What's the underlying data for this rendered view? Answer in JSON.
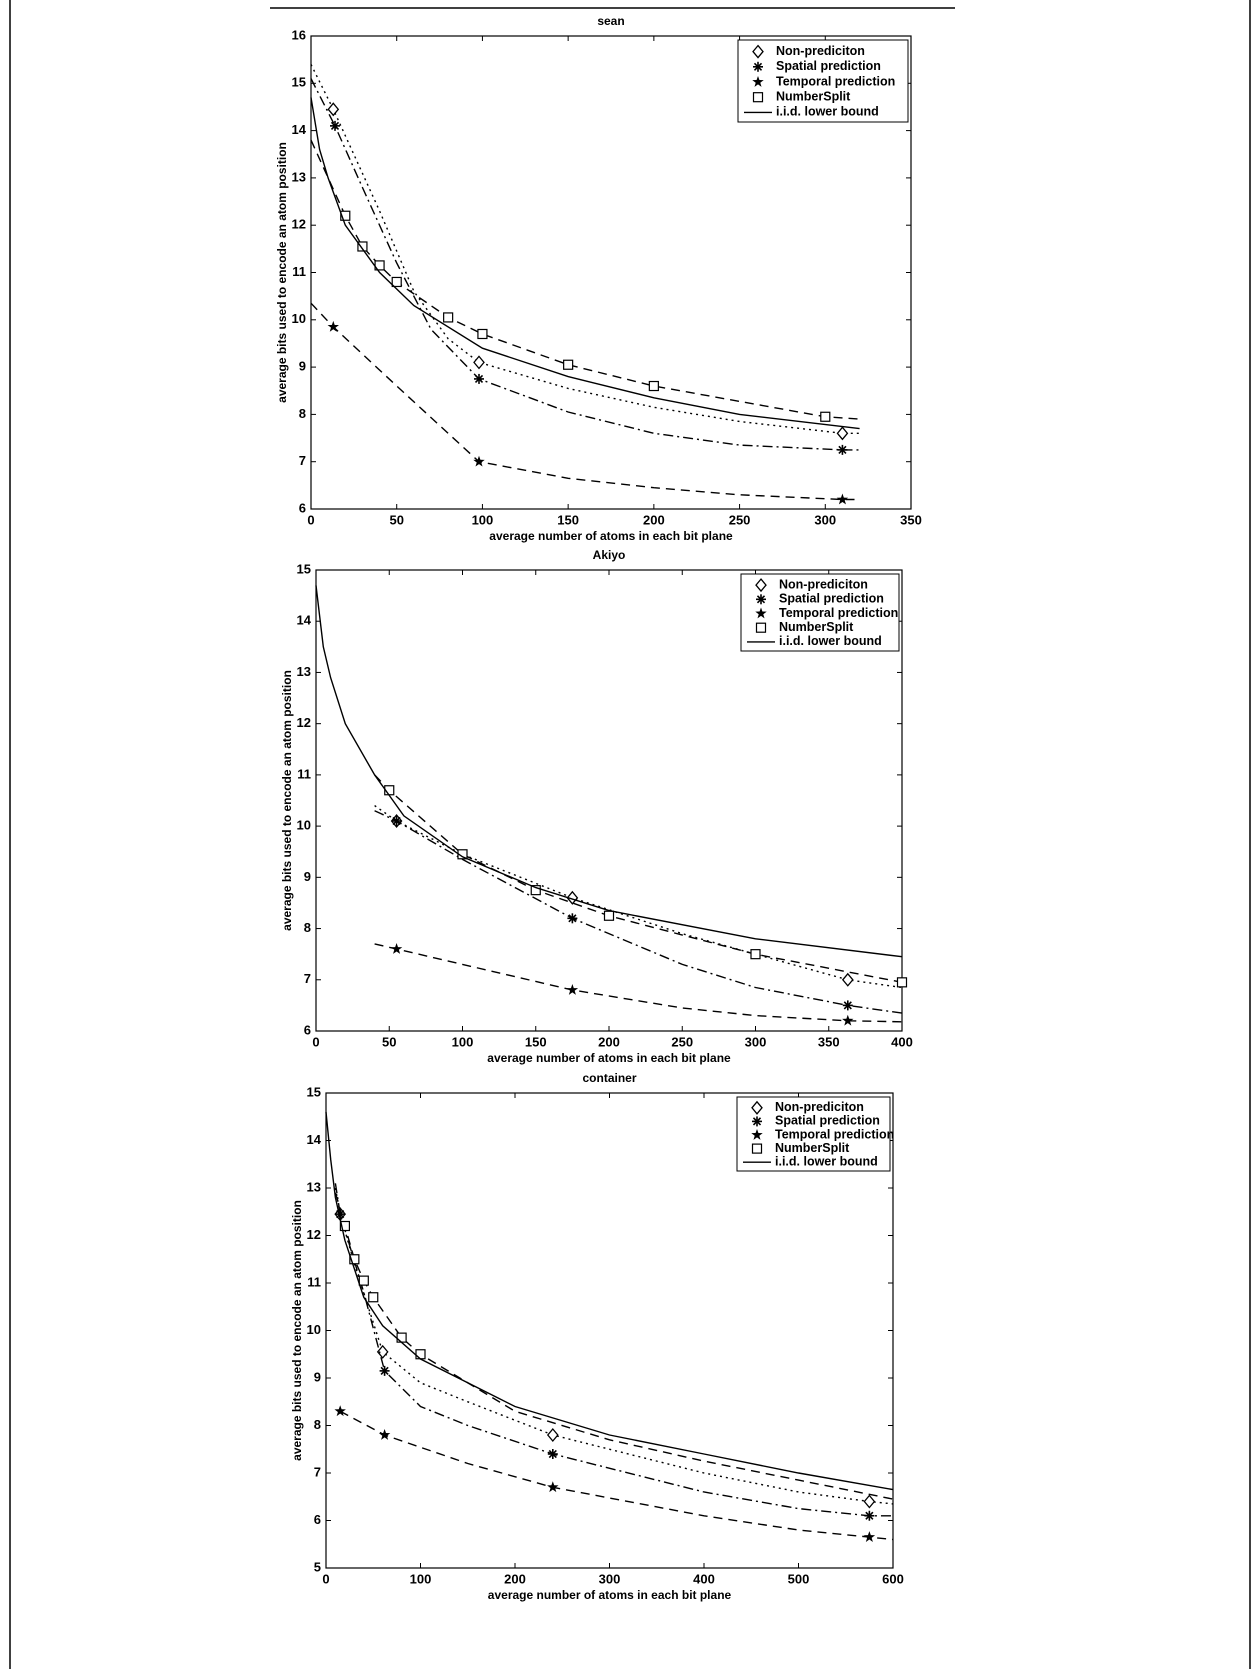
{
  "chart_data": [
    {
      "type": "line",
      "title": "sean",
      "xlabel": "average number of atoms in each bit plane",
      "ylabel": "average bits used to encode an atom position",
      "xlim": [
        0,
        350
      ],
      "xticks": [
        0,
        50,
        100,
        150,
        200,
        250,
        300,
        350
      ],
      "ylim": [
        6,
        16
      ],
      "yticks": [
        6,
        7,
        8,
        9,
        10,
        11,
        12,
        13,
        14,
        15,
        16
      ],
      "legend": "upper right",
      "series": [
        {
          "name": "Non-prediciton",
          "color": "#000000",
          "marker": "diamond",
          "line_style": "dotted",
          "x": [
            0,
            13,
            40,
            60,
            80,
            98,
            150,
            200,
            250,
            310,
            320
          ],
          "values": [
            15.4,
            14.45,
            12.3,
            10.6,
            9.6,
            9.1,
            8.55,
            8.15,
            7.85,
            7.6,
            7.6
          ],
          "points": {
            "x": [
              13,
              98,
              310
            ],
            "values": [
              14.45,
              9.1,
              7.6
            ]
          }
        },
        {
          "name": "Spatial prediction",
          "color": "#000000",
          "marker": "asterisk",
          "line_style": "dashdot",
          "x": [
            0,
            14,
            30,
            50,
            70,
            98,
            150,
            200,
            250,
            310,
            320
          ],
          "values": [
            15.1,
            14.1,
            12.8,
            11.2,
            9.8,
            8.75,
            8.05,
            7.6,
            7.35,
            7.25,
            7.25
          ],
          "points": {
            "x": [
              14,
              98,
              310
            ],
            "values": [
              14.1,
              8.75,
              7.25
            ]
          }
        },
        {
          "name": "Temporal prediction",
          "color": "#000000",
          "marker": "star",
          "line_style": "dashed",
          "x": [
            0,
            13,
            50,
            98,
            150,
            200,
            250,
            310,
            320
          ],
          "values": [
            10.35,
            9.85,
            8.6,
            7.0,
            6.65,
            6.45,
            6.3,
            6.2,
            6.2
          ],
          "points": {
            "x": [
              13,
              98,
              310
            ],
            "values": [
              9.85,
              7.0,
              6.2
            ]
          }
        },
        {
          "name": "NumberSplit",
          "color": "#000000",
          "marker": "square",
          "line_style": "dashed",
          "x": [
            0,
            20,
            30,
            40,
            50,
            80,
            100,
            150,
            200,
            300,
            320
          ],
          "values": [
            13.8,
            12.2,
            11.55,
            11.15,
            10.8,
            10.05,
            9.7,
            9.05,
            8.6,
            7.95,
            7.9
          ],
          "points": {
            "x": [
              20,
              30,
              40,
              50,
              80,
              100,
              150,
              200,
              300
            ],
            "values": [
              12.2,
              11.55,
              11.15,
              10.8,
              10.05,
              9.7,
              9.05,
              8.6,
              7.95
            ]
          }
        },
        {
          "name": "i.i.d. lower bound",
          "color": "#000000",
          "marker": "none",
          "line_style": "solid",
          "x": [
            0,
            5,
            10,
            20,
            40,
            60,
            100,
            150,
            200,
            250,
            320
          ],
          "values": [
            14.7,
            13.6,
            13.0,
            12.0,
            11.0,
            10.3,
            9.4,
            8.8,
            8.35,
            8.0,
            7.7
          ]
        }
      ]
    },
    {
      "type": "line",
      "title": "Akiyo",
      "xlabel": "average number of atoms in each bit plane",
      "ylabel": "average bits used to encode an atom position",
      "xlim": [
        0,
        400
      ],
      "xticks": [
        0,
        50,
        100,
        150,
        200,
        250,
        300,
        350,
        400
      ],
      "ylim": [
        6,
        15
      ],
      "yticks": [
        6,
        7,
        8,
        9,
        10,
        11,
        12,
        13,
        14,
        15
      ],
      "legend": "upper right",
      "series": [
        {
          "name": "Non-prediciton",
          "color": "#000000",
          "marker": "diamond",
          "line_style": "dotted",
          "x": [
            40,
            55,
            100,
            175,
            250,
            300,
            363,
            400
          ],
          "values": [
            10.4,
            10.1,
            9.45,
            8.6,
            7.9,
            7.5,
            7.0,
            6.85
          ],
          "points": {
            "x": [
              55,
              175,
              363
            ],
            "values": [
              10.1,
              8.6,
              7.0
            ]
          }
        },
        {
          "name": "Spatial prediction",
          "color": "#000000",
          "marker": "asterisk",
          "line_style": "dashdot",
          "x": [
            40,
            55,
            100,
            175,
            250,
            300,
            363,
            400
          ],
          "values": [
            10.3,
            10.1,
            9.35,
            8.2,
            7.3,
            6.85,
            6.5,
            6.35
          ],
          "points": {
            "x": [
              55,
              175,
              363
            ],
            "values": [
              10.1,
              8.2,
              6.5
            ]
          }
        },
        {
          "name": "Temporal prediction",
          "color": "#000000",
          "marker": "star",
          "line_style": "dashed",
          "x": [
            40,
            55,
            100,
            175,
            250,
            300,
            363,
            400
          ],
          "values": [
            7.7,
            7.6,
            7.3,
            6.8,
            6.45,
            6.3,
            6.2,
            6.18
          ],
          "points": {
            "x": [
              55,
              175,
              363
            ],
            "values": [
              7.6,
              6.8,
              6.2
            ]
          }
        },
        {
          "name": "NumberSplit",
          "color": "#000000",
          "marker": "square",
          "line_style": "dashed",
          "x": [
            40,
            50,
            100,
            150,
            200,
            300,
            400
          ],
          "values": [
            11.0,
            10.7,
            9.45,
            8.75,
            8.25,
            7.5,
            6.95
          ],
          "points": {
            "x": [
              50,
              100,
              150,
              200,
              300,
              400
            ],
            "values": [
              10.7,
              9.45,
              8.75,
              8.25,
              7.5,
              6.95
            ]
          }
        },
        {
          "name": "i.i.d. lower bound",
          "color": "#000000",
          "marker": "none",
          "line_style": "solid",
          "x": [
            0,
            5,
            10,
            20,
            40,
            60,
            100,
            150,
            200,
            300,
            400
          ],
          "values": [
            14.7,
            13.5,
            12.9,
            12.0,
            11.0,
            10.2,
            9.4,
            8.8,
            8.35,
            7.8,
            7.45
          ]
        }
      ]
    },
    {
      "type": "line",
      "title": "container",
      "xlabel": "average number of atoms in each bit plane",
      "ylabel": "average bits used to encode an atom position",
      "xlim": [
        0,
        600
      ],
      "xticks": [
        0,
        100,
        200,
        300,
        400,
        500,
        600
      ],
      "ylim": [
        5,
        15
      ],
      "yticks": [
        5,
        6,
        7,
        8,
        9,
        10,
        11,
        12,
        13,
        14,
        15
      ],
      "legend": "upper right",
      "series": [
        {
          "name": "Non-prediciton",
          "color": "#000000",
          "marker": "diamond",
          "line_style": "dotted",
          "x": [
            10,
            15,
            30,
            60,
            100,
            150,
            240,
            400,
            500,
            575,
            600
          ],
          "values": [
            13.0,
            12.45,
            11.4,
            9.55,
            8.9,
            8.5,
            7.8,
            7.0,
            6.6,
            6.4,
            6.35
          ],
          "points": {
            "x": [
              15,
              60,
              240,
              575
            ],
            "values": [
              12.45,
              9.55,
              7.8,
              6.4
            ]
          }
        },
        {
          "name": "Spatial prediction",
          "color": "#000000",
          "marker": "asterisk",
          "line_style": "dashdot",
          "x": [
            10,
            15,
            40,
            62,
            100,
            150,
            240,
            400,
            500,
            575,
            600
          ],
          "values": [
            13.1,
            12.45,
            10.8,
            9.15,
            8.4,
            8.0,
            7.4,
            6.6,
            6.25,
            6.1,
            6.1
          ],
          "points": {
            "x": [
              15,
              62,
              240,
              575
            ],
            "values": [
              12.45,
              9.15,
              7.4,
              6.1
            ]
          }
        },
        {
          "name": "Temporal prediction",
          "color": "#000000",
          "marker": "star",
          "line_style": "dashed",
          "x": [
            15,
            62,
            150,
            240,
            400,
            500,
            575,
            600
          ],
          "values": [
            8.3,
            7.8,
            7.2,
            6.7,
            6.1,
            5.8,
            5.65,
            5.6
          ],
          "points": {
            "x": [
              15,
              62,
              240,
              575
            ],
            "values": [
              8.3,
              7.8,
              6.7,
              5.65
            ]
          }
        },
        {
          "name": "NumberSplit",
          "color": "#000000",
          "marker": "square",
          "line_style": "dashed",
          "x": [
            10,
            20,
            30,
            40,
            50,
            80,
            100,
            200,
            300,
            400,
            500,
            600
          ],
          "values": [
            12.9,
            12.2,
            11.5,
            11.05,
            10.7,
            9.85,
            9.5,
            8.3,
            7.7,
            7.25,
            6.85,
            6.45
          ],
          "points": {
            "x": [
              20,
              30,
              40,
              50,
              80,
              100
            ],
            "values": [
              12.2,
              11.5,
              11.05,
              10.7,
              9.85,
              9.5
            ]
          }
        },
        {
          "name": "i.i.d. lower bound",
          "color": "#000000",
          "marker": "none",
          "line_style": "solid",
          "x": [
            0,
            5,
            10,
            20,
            40,
            60,
            100,
            200,
            300,
            400,
            500,
            600
          ],
          "values": [
            14.6,
            13.6,
            12.8,
            11.9,
            10.7,
            10.1,
            9.4,
            8.4,
            7.8,
            7.4,
            7.0,
            6.65
          ]
        }
      ]
    }
  ]
}
